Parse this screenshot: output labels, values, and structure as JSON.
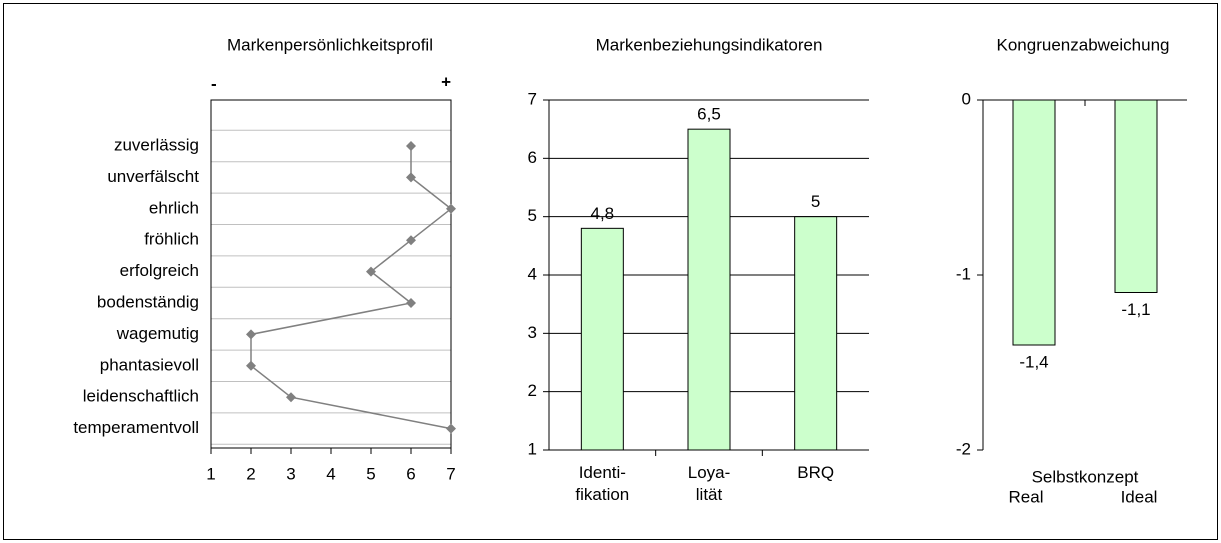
{
  "chart_data": [
    {
      "type": "line",
      "orientation": "horizontal",
      "title": "Markenpersönlichkeitsprofil",
      "annotations": [
        "-",
        "+"
      ],
      "categories": [
        "zuverlässig",
        "unverfälscht",
        "ehrlich",
        "fröhlich",
        "erfolgreich",
        "bodenständig",
        "wagemutig",
        "phantasievoll",
        "leidenschaftlich",
        "temperamentvoll"
      ],
      "values": [
        6,
        6,
        7,
        6,
        5,
        6,
        2,
        2,
        3,
        7
      ],
      "color": "#808080",
      "xlim": [
        1,
        7
      ],
      "xticks": [
        1,
        2,
        3,
        4,
        5,
        6,
        7
      ],
      "grid": true
    },
    {
      "type": "bar",
      "title": "Markenbeziehungsindikatoren",
      "categories": [
        "Identi-\nfikation",
        "Loya-\nlität",
        "BRQ"
      ],
      "values": [
        4.8,
        6.5,
        5
      ],
      "value_labels": [
        "4,8",
        "6,5",
        "5"
      ],
      "color": "#ccffcc",
      "ylim": [
        1,
        7
      ],
      "yticks": [
        1,
        2,
        3,
        4,
        5,
        6,
        7
      ],
      "grid": true
    },
    {
      "type": "bar",
      "title": "Kongruenzabweichung",
      "xlabel": "Selbstkonzept",
      "categories": [
        "Real",
        "Ideal"
      ],
      "values": [
        -1.4,
        -1.1
      ],
      "value_labels": [
        "-1,4",
        "-1,1"
      ],
      "color": "#ccffcc",
      "ylim": [
        -2,
        0
      ],
      "yticks": [
        0,
        -1,
        -2
      ],
      "grid": false
    }
  ]
}
